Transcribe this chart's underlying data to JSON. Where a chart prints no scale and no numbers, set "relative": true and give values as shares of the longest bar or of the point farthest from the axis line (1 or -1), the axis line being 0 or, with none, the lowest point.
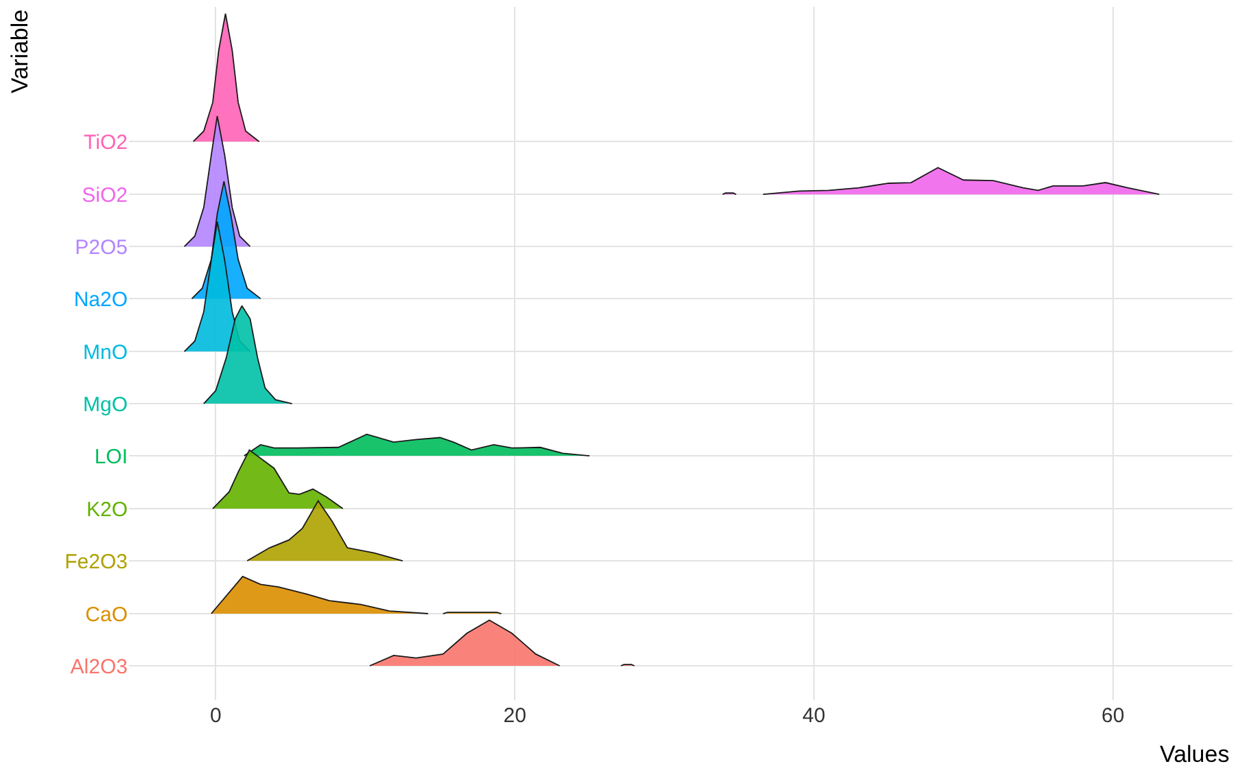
{
  "chart_data": {
    "type": "area",
    "relative": true,
    "xlabel": "Values",
    "ylabel": "Variable",
    "xlim": [
      -5.8,
      68
    ],
    "xticks": [
      0,
      20,
      40,
      60
    ],
    "grid": true,
    "series": [
      {
        "name": "TiO2",
        "color": "#ff63b6",
        "x": [
          -1.5,
          -0.8,
          -0.2,
          0.2,
          0.65,
          1.1,
          1.5,
          2.0,
          2.9
        ],
        "values": [
          0.804,
          0.82,
          0.864,
          0.944,
          1,
          0.944,
          0.864,
          0.82,
          0.804
        ]
      },
      {
        "name": "SiO2",
        "color": "#ef67eb",
        "x": [
          33.9,
          34.1,
          34.6,
          34.8,
          null,
          36.6,
          39,
          41,
          43,
          45,
          46.5,
          48.3,
          50,
          52,
          54,
          55,
          56,
          58,
          59.5,
          61,
          63.1
        ],
        "values": [
          0.723,
          0.725,
          0.725,
          0.723,
          null,
          0.723,
          0.728,
          0.729,
          0.733,
          0.74,
          0.741,
          0.764,
          0.745,
          0.744,
          0.733,
          0.729,
          0.736,
          0.736,
          0.741,
          0.733,
          0.723
        ]
      },
      {
        "name": "P2O5",
        "color": "#b385ff",
        "x": [
          -2.1,
          -1.4,
          -0.8,
          -0.3,
          0.1,
          0.6,
          1.1,
          1.6,
          2.3
        ],
        "values": [
          0.643,
          0.659,
          0.703,
          0.783,
          0.843,
          0.783,
          0.703,
          0.659,
          0.643
        ]
      },
      {
        "name": "Na2O",
        "color": "#00a6ff",
        "x": [
          -1.6,
          -0.9,
          -0.3,
          0.1,
          0.55,
          1.0,
          1.5,
          2.1,
          3.0
        ],
        "values": [
          0.563,
          0.579,
          0.623,
          0.693,
          0.743,
          0.693,
          0.623,
          0.579,
          0.563
        ]
      },
      {
        "name": "MnO",
        "color": "#00bade",
        "x": [
          -2.1,
          -1.4,
          -0.8,
          -0.3,
          0.1,
          0.6,
          1.1,
          1.6,
          2.3
        ],
        "values": [
          0.482,
          0.498,
          0.543,
          0.622,
          0.681,
          0.622,
          0.543,
          0.498,
          0.482
        ]
      },
      {
        "name": "MgO",
        "color": "#00c1a7",
        "x": [
          -0.8,
          0,
          0.7,
          1.3,
          1.75,
          2.3,
          2.8,
          3.3,
          4,
          5.1
        ],
        "values": [
          0.402,
          0.422,
          0.472,
          0.532,
          0.552,
          0.532,
          0.472,
          0.426,
          0.408,
          0.402
        ]
      },
      {
        "name": "LOI",
        "color": "#00bd5c",
        "x": [
          1.9,
          3.0,
          3.9,
          5.5,
          8.2,
          10.1,
          11.9,
          13.4,
          15.0,
          15.9,
          17.1,
          18.6,
          19.8,
          21.7,
          23.2,
          25.0
        ],
        "values": [
          0.322,
          0.339,
          0.334,
          0.334,
          0.335,
          0.355,
          0.343,
          0.347,
          0.35,
          0.343,
          0.331,
          0.339,
          0.334,
          0.335,
          0.326,
          0.322
        ]
      },
      {
        "name": "K2O",
        "color": "#64b200",
        "x": [
          -0.2,
          0.9,
          1.5,
          2.25,
          3.9,
          4.9,
          5.6,
          6.5,
          7.4,
          8.5
        ],
        "values": [
          0.241,
          0.267,
          0.297,
          0.331,
          0.303,
          0.265,
          0.263,
          0.271,
          0.259,
          0.241
        ]
      },
      {
        "name": "Fe2O3",
        "color": "#aea200",
        "x": [
          2.1,
          3.6,
          4.9,
          5.8,
          6.85,
          7.8,
          8.8,
          10.6,
          12.5
        ],
        "values": [
          0.161,
          0.181,
          0.193,
          0.211,
          0.253,
          0.221,
          0.181,
          0.173,
          0.161
        ]
      },
      {
        "name": "CaO",
        "color": "#db8e00",
        "x": [
          -0.3,
          1.8,
          3.0,
          4.2,
          6.1,
          7.6,
          9.7,
          11.6,
          14.2,
          null,
          15.2,
          15.5,
          18.8,
          19.1
        ],
        "values": [
          0.08,
          0.137,
          0.125,
          0.121,
          0.11,
          0.1,
          0.094,
          0.084,
          0.08,
          null,
          0.08,
          0.082,
          0.082,
          0.08
        ]
      },
      {
        "name": "Al2O3",
        "color": "#f8766d",
        "x": [
          10.3,
          11.9,
          13.4,
          15.2,
          16.8,
          18.3,
          19.8,
          21.4,
          23.0,
          null,
          27.1,
          27.3,
          27.8,
          28.0
        ],
        "values": [
          0,
          0.016,
          0.012,
          0.018,
          0.05,
          0.07,
          0.05,
          0.018,
          0,
          null,
          0,
          0.002,
          0.002,
          0
        ]
      }
    ]
  }
}
